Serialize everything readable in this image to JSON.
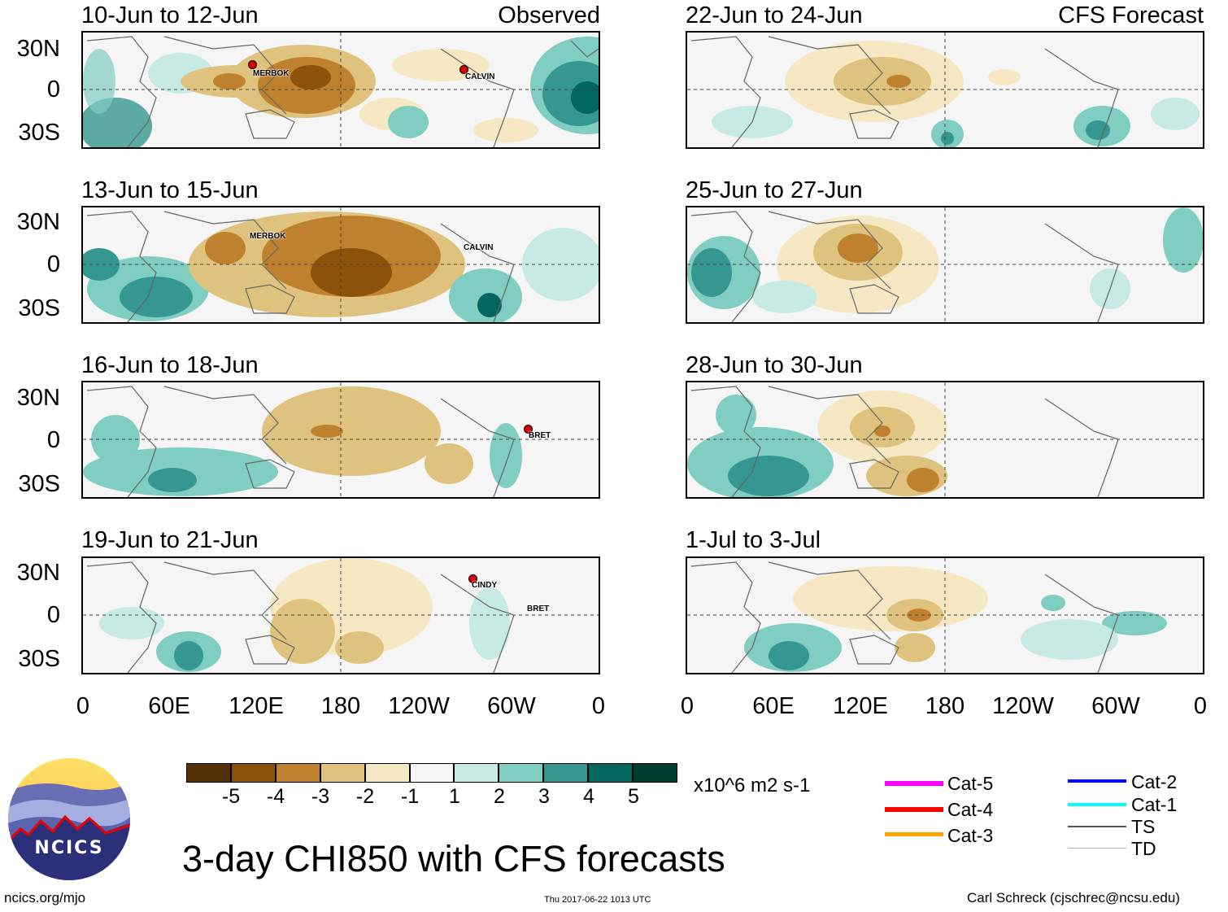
{
  "title": "3-day CHI850 with CFS forecasts",
  "observed_tag": "Observed",
  "forecast_tag": "CFS Forecast",
  "lat_labels": [
    "30N",
    "0",
    "30S"
  ],
  "lon_labels": [
    "0",
    "60E",
    "120E",
    "180",
    "120W",
    "60W",
    "0"
  ],
  "panels": [
    {
      "title": "10-Jun to 12-Jun",
      "storms": [
        "MERBOK",
        "CALVIN"
      ]
    },
    {
      "title": "13-Jun to 15-Jun",
      "storms": [
        "MERBOK",
        "CALVIN"
      ]
    },
    {
      "title": "16-Jun to 18-Jun",
      "storms": [
        "BRET"
      ]
    },
    {
      "title": "19-Jun to 21-Jun",
      "storms": [
        "CINDY",
        "BRET"
      ]
    },
    {
      "title": "22-Jun to 24-Jun",
      "storms": []
    },
    {
      "title": "25-Jun to 27-Jun",
      "storms": []
    },
    {
      "title": "28-Jun to 30-Jun",
      "storms": []
    },
    {
      "title": "1-Jul to 3-Jul",
      "storms": []
    }
  ],
  "colorbar": {
    "labels": [
      "-5",
      "-4",
      "-3",
      "-2",
      "-1",
      "1",
      "2",
      "3",
      "4",
      "5"
    ],
    "colors": [
      "#543005",
      "#8c510a",
      "#bf812d",
      "#dfc27d",
      "#f6e8c3",
      "#f5f5f5",
      "#c7eae5",
      "#80cdc1",
      "#35978f",
      "#01665e",
      "#003c30"
    ],
    "units": "x10^6 m2 s-1"
  },
  "legend": [
    {
      "label": "Cat-5",
      "color": "#ff00ff"
    },
    {
      "label": "Cat-4",
      "color": "#ff0000"
    },
    {
      "label": "Cat-3",
      "color": "#ffa500"
    },
    {
      "label": "Cat-2",
      "color": "#0000ff"
    },
    {
      "label": "Cat-1",
      "color": "#00ffff"
    },
    {
      "label": "TS",
      "color": "#555555"
    },
    {
      "label": "TD",
      "color": "#aaaaaa"
    }
  ],
  "logo_text": "NCICS",
  "footer": {
    "url": "ncics.org/mjo",
    "timestamp": "Thu 2017-06-22 1013 UTC",
    "credit": "Carl Schreck (cjschrec@ncsu.edu)"
  }
}
